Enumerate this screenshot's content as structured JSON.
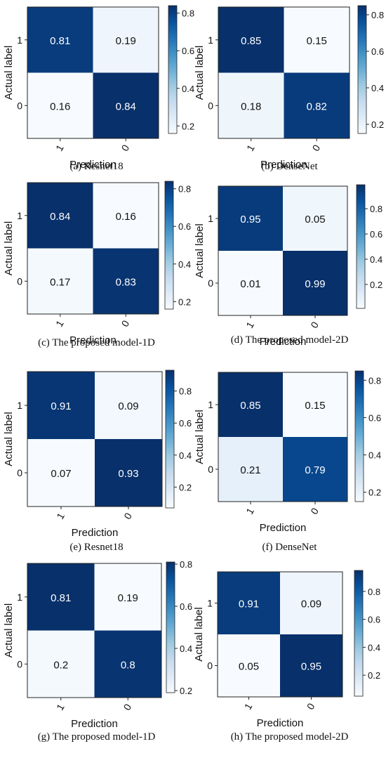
{
  "colors": {
    "colormap": "Blues",
    "low": "#f7fbff",
    "high": "#08306b",
    "cbar_mid": "#1c9fca"
  },
  "chart_data": [
    {
      "type": "heatmap",
      "caption": "(a) Resnet18",
      "ylabel": "Actual label",
      "xlabel": "Prediction",
      "y_tick_labels": [
        "1",
        "0"
      ],
      "x_tick_labels": [
        "1",
        "0"
      ],
      "matrix": [
        [
          "0.81",
          "0.19"
        ],
        [
          "0.16",
          "0.84"
        ]
      ],
      "colorbar": {
        "ticks": [
          "0.8",
          "0.6",
          "0.4",
          "0.2"
        ],
        "min": 0.16,
        "max": 0.84
      }
    },
    {
      "type": "heatmap",
      "caption": "(b) DenseNet",
      "ylabel": "Actual label",
      "xlabel": "Prediction",
      "y_tick_labels": [
        "1",
        "0"
      ],
      "x_tick_labels": [
        "1",
        "0"
      ],
      "matrix": [
        [
          "0.85",
          "0.15"
        ],
        [
          "0.18",
          "0.82"
        ]
      ],
      "colorbar": {
        "ticks": [
          "0.8",
          "0.6",
          "0.4",
          "0.2"
        ],
        "min": 0.15,
        "max": 0.85
      }
    },
    {
      "type": "heatmap",
      "caption": "(c) The proposed model-1D",
      "ylabel": "Actual label",
      "xlabel": "Prediction",
      "y_tick_labels": [
        "1",
        "0"
      ],
      "x_tick_labels": [
        "1",
        "0"
      ],
      "matrix": [
        [
          "0.84",
          "0.16"
        ],
        [
          "0.17",
          "0.83"
        ]
      ],
      "colorbar": {
        "ticks": [
          "0.8",
          "0.6",
          "0.4",
          "0.2"
        ],
        "min": 0.16,
        "max": 0.84
      }
    },
    {
      "type": "heatmap",
      "caption": "(d) The proposed model-2D",
      "ylabel": "Actual label",
      "xlabel": "Prediction",
      "y_tick_labels": [
        "1",
        "0"
      ],
      "x_tick_labels": [
        "1",
        "0"
      ],
      "matrix": [
        [
          "0.95",
          "0.05"
        ],
        [
          "0.01",
          "0.99"
        ]
      ],
      "colorbar": {
        "ticks": [
          "0.8",
          "0.6",
          "0.4",
          "0.2"
        ],
        "min": 0.01,
        "max": 0.99
      }
    },
    {
      "type": "heatmap",
      "caption": "(e) Resnet18",
      "ylabel": "Actual label",
      "xlabel": "Prediction",
      "y_tick_labels": [
        "1",
        "0"
      ],
      "x_tick_labels": [
        "1",
        "0"
      ],
      "matrix": [
        [
          "0.91",
          "0.09"
        ],
        [
          "0.07",
          "0.93"
        ]
      ],
      "colorbar": {
        "ticks": [
          "0.8",
          "0.6",
          "0.4",
          "0.2"
        ],
        "min": 0.07,
        "max": 0.93
      }
    },
    {
      "type": "heatmap",
      "caption": "(f) DenseNet",
      "ylabel": "Actual label",
      "xlabel": "Prediction",
      "y_tick_labels": [
        "1",
        "0"
      ],
      "x_tick_labels": [
        "1",
        "0"
      ],
      "matrix": [
        [
          "0.85",
          "0.15"
        ],
        [
          "0.21",
          "0.79"
        ]
      ],
      "colorbar": {
        "ticks": [
          "0.8",
          "0.6",
          "0.4",
          "0.2"
        ],
        "min": 0.15,
        "max": 0.85
      }
    },
    {
      "type": "heatmap",
      "caption": "(g) The proposed model-1D",
      "ylabel": "Actual label",
      "xlabel": "Prediction",
      "y_tick_labels": [
        "1",
        "0"
      ],
      "x_tick_labels": [
        "1",
        "0"
      ],
      "matrix": [
        [
          "0.81",
          "0.19"
        ],
        [
          "0.2",
          "0.8"
        ]
      ],
      "colorbar": {
        "ticks": [
          "0.8",
          "0.6",
          "0.4",
          "0.2"
        ],
        "min": 0.19,
        "max": 0.81
      }
    },
    {
      "type": "heatmap",
      "caption": "(h) The proposed model-2D",
      "ylabel": "Actual label",
      "xlabel": "Prediction",
      "y_tick_labels": [
        "1",
        "0"
      ],
      "x_tick_labels": [
        "1",
        "0"
      ],
      "matrix": [
        [
          "0.91",
          "0.09"
        ],
        [
          "0.05",
          "0.95"
        ]
      ],
      "colorbar": {
        "ticks": [
          "0.8",
          "0.6",
          "0.4",
          "0.2"
        ],
        "min": 0.05,
        "max": 0.95
      }
    }
  ]
}
